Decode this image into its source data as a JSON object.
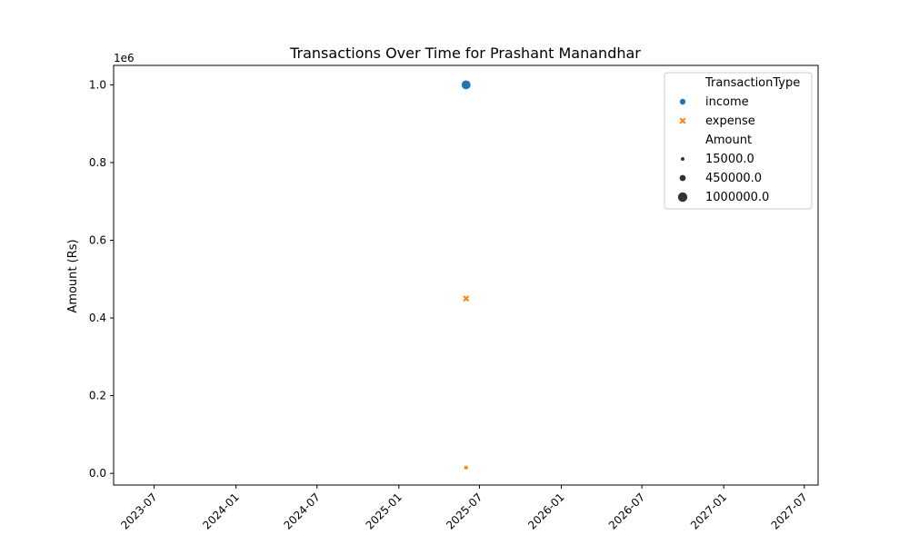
{
  "chart_data": {
    "type": "scatter",
    "title": "Transactions Over Time for Prashant Manandhar",
    "xlabel": "",
    "ylabel": "Amount (Rs)",
    "y_offset_label": "1e6",
    "xlim": [
      "2023-04-01",
      "2027-08-01"
    ],
    "ylim": [
      -30000,
      1050000
    ],
    "x_ticks": [
      "2023-07",
      "2024-01",
      "2024-07",
      "2025-01",
      "2025-07",
      "2026-01",
      "2026-07",
      "2027-01",
      "2027-07"
    ],
    "y_ticks": [
      "0.0",
      "0.2",
      "0.4",
      "0.6",
      "0.8",
      "1.0"
    ],
    "y_tick_values": [
      0,
      200000,
      400000,
      600000,
      800000,
      1000000
    ],
    "grid": false,
    "legend_position": "top-right",
    "series": [
      {
        "name": "income",
        "color": "#1f77b4",
        "marker": "circle",
        "points": [
          {
            "x": "2025-06-01",
            "y": 1000000
          }
        ]
      },
      {
        "name": "expense",
        "color": "#ff7f0e",
        "marker": "x",
        "points": [
          {
            "x": "2025-06-01",
            "y": 450000
          },
          {
            "x": "2025-06-01",
            "y": 15000
          }
        ]
      }
    ],
    "legend": {
      "hue_title": "TransactionType",
      "hue_entries": [
        {
          "label": "income",
          "color": "#1f77b4",
          "marker": "circle"
        },
        {
          "label": "expense",
          "color": "#ff7f0e",
          "marker": "x"
        }
      ],
      "size_title": "Amount",
      "size_entries": [
        {
          "label": "15000.0",
          "value": 15000
        },
        {
          "label": "450000.0",
          "value": 450000
        },
        {
          "label": "1000000.0",
          "value": 1000000
        }
      ]
    }
  }
}
